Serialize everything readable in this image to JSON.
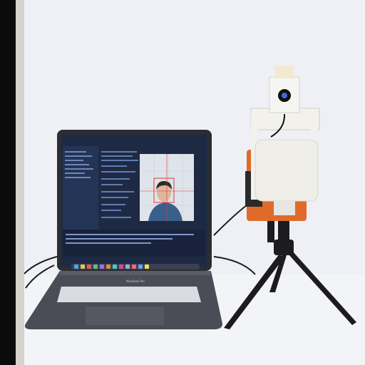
{
  "scene": {
    "description_items": [
      "laptop",
      "face-tracking-camera",
      "tripod"
    ],
    "laptop": {
      "brand_label": "MacBook Pro",
      "screen": {
        "code_lines": 14,
        "preview_window": true
      }
    },
    "colors": {
      "background": "#eef0f6",
      "table": "#f4f5f8",
      "laptop_body": "#4a4d55",
      "screen_bg": "#1e2a44",
      "camera_body": "#efeee8",
      "camera_accent": "#e06a2a",
      "tripod": "#1c1c1f"
    }
  }
}
